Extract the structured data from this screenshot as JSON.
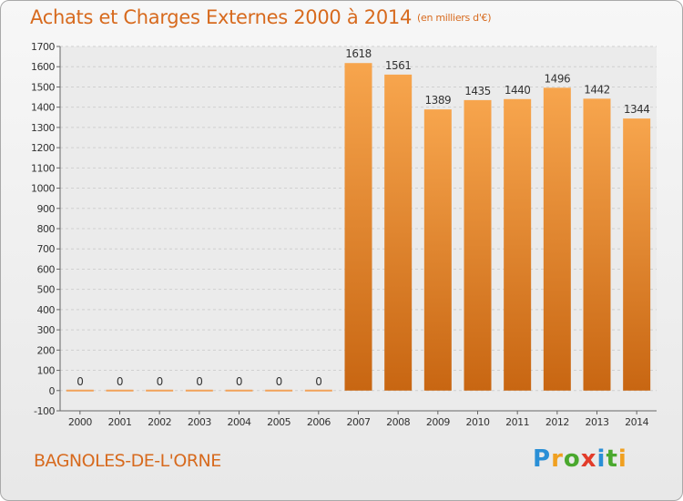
{
  "chart_data": {
    "type": "bar",
    "title": "Achats et Charges Externes 2000 à 2014",
    "subtitle": "(en milliers d'€)",
    "categories": [
      "2000",
      "2001",
      "2002",
      "2003",
      "2004",
      "2005",
      "2006",
      "2007",
      "2008",
      "2009",
      "2010",
      "2011",
      "2012",
      "2013",
      "2014"
    ],
    "values": [
      0,
      0,
      0,
      0,
      0,
      0,
      0,
      1618,
      1561,
      1389,
      1435,
      1440,
      1496,
      1442,
      1344
    ],
    "data_labels": [
      "0",
      "0",
      "0",
      "0",
      "0",
      "0",
      "0",
      "1618",
      "1561",
      "1389",
      "1435",
      "1440",
      "1496",
      "1442",
      "1344"
    ],
    "yticks": [
      "-100",
      "0",
      "100",
      "200",
      "300",
      "400",
      "500",
      "600",
      "700",
      "800",
      "900",
      "1000",
      "1100",
      "1200",
      "1300",
      "1400",
      "1500",
      "1600",
      "1700"
    ],
    "ylim": [
      -100,
      1700
    ],
    "grid": true,
    "legend": "none",
    "colors": {
      "bar_top": "#f7a54d",
      "bar_bottom": "#c86612",
      "text_accent": "#d76a1e",
      "grid": "#d0d0d0"
    }
  },
  "footer": {
    "location": "BAGNOLES-DE-L'ORNE",
    "brand": [
      "P",
      "r",
      "o",
      "x",
      "i",
      "t",
      "i"
    ],
    "brand_colors": [
      "#2a8fd6",
      "#f0a020",
      "#4aa82e",
      "#e23c2a",
      "#2a8fd6",
      "#4aa82e",
      "#f0a020"
    ]
  }
}
